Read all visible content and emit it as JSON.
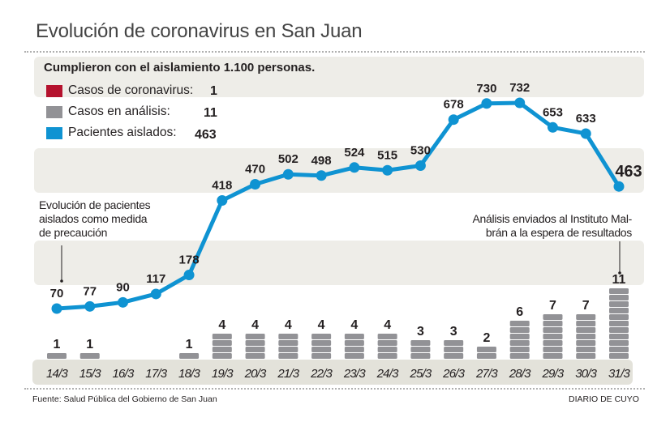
{
  "title": "Evolución de coronavirus en San Juan",
  "subtitle": "Cumplieron con el aislamiento 1.100 personas.",
  "legend": [
    {
      "label": "Casos de coronavirus:",
      "value": "1",
      "color": "#b5122e"
    },
    {
      "label": "Casos en análisis:",
      "value": "11",
      "color": "#929296"
    },
    {
      "label": "Pacientes aislados:",
      "value": "463",
      "color": "#0f93d2"
    }
  ],
  "annotations": {
    "left": [
      "Evolución de pacientes",
      "aislados como medida",
      "de precaución"
    ],
    "right": [
      "Análisis enviados al Instituto Mal-",
      "brán a la espera de resultados"
    ]
  },
  "source": "Fuente: Salud Pública del Gobierno de San Juan",
  "brand": "DIARIO DE CUYO",
  "chart_data": {
    "type": "line",
    "title": "Evolución de coronavirus en San Juan",
    "xlabel": "",
    "ylabel": "",
    "categories": [
      "14/3",
      "15/3",
      "16/3",
      "17/3",
      "18/3",
      "19/3",
      "20/3",
      "21/3",
      "22/3",
      "23/3",
      "24/3",
      "25/3",
      "26/3",
      "27/3",
      "28/3",
      "29/3",
      "30/3",
      "31/3"
    ],
    "series": [
      {
        "name": "Pacientes aislados",
        "type": "line",
        "color": "#0f93d2",
        "values": [
          70,
          77,
          90,
          117,
          178,
          418,
          470,
          502,
          498,
          524,
          515,
          530,
          678,
          730,
          732,
          653,
          633,
          463
        ]
      },
      {
        "name": "Casos en análisis",
        "type": "bar",
        "color": "#929296",
        "values": [
          1,
          1,
          0,
          0,
          1,
          4,
          4,
          4,
          4,
          4,
          4,
          3,
          3,
          2,
          6,
          7,
          7,
          11
        ]
      }
    ],
    "grid": false,
    "legend_position": "top-left"
  }
}
